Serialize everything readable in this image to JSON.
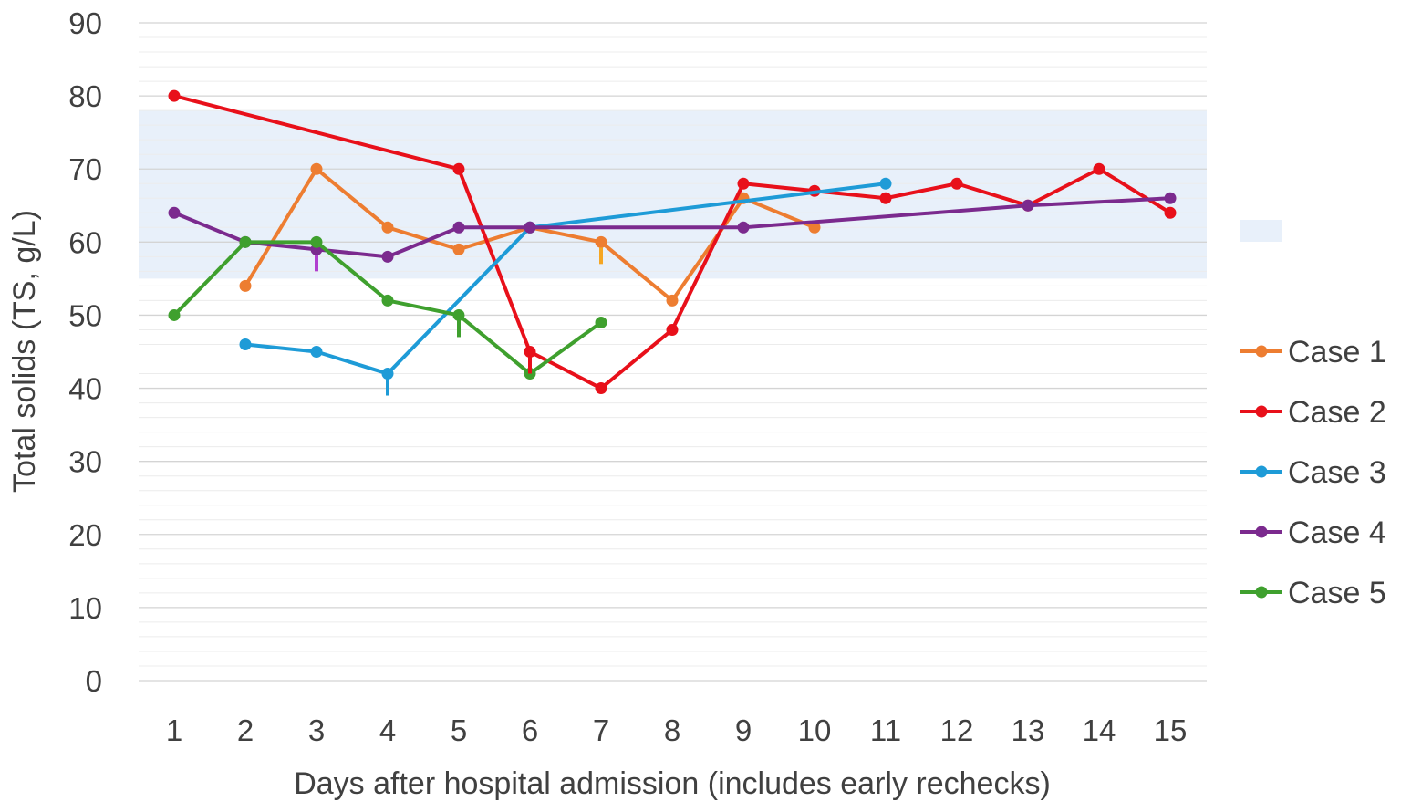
{
  "chart_data": {
    "type": "line",
    "title": "",
    "xlabel": "Days after hospital admission (includes early rechecks)",
    "ylabel": "Total solids  (TS, g/L)",
    "x_categories": [
      "1",
      "2",
      "3",
      "4",
      "5",
      "6",
      "7",
      "8",
      "9",
      "10",
      "11",
      "12",
      "13",
      "14",
      "15"
    ],
    "xlim": [
      1,
      15
    ],
    "ylim": [
      0,
      90
    ],
    "y_ticks": [
      "0",
      "10",
      "20",
      "30",
      "40",
      "50",
      "60",
      "70",
      "80",
      "90"
    ],
    "y_tick_values": [
      0,
      10,
      20,
      30,
      40,
      50,
      60,
      70,
      80,
      90
    ],
    "grid": true,
    "reference_band": {
      "from": 55,
      "to": 78,
      "color": "#e8f0fa"
    },
    "legend_position": "right",
    "series": [
      {
        "name": "Case 1",
        "color": "#ed7d31",
        "points": [
          [
            2,
            54
          ],
          [
            3,
            70
          ],
          [
            4,
            62
          ],
          [
            5,
            59
          ],
          [
            6,
            62
          ],
          [
            7,
            60
          ],
          [
            8,
            52
          ],
          [
            9,
            66
          ],
          [
            10,
            62
          ]
        ],
        "markers": [
          {
            "x": 7,
            "y": 60,
            "color": "#f5a623"
          }
        ]
      },
      {
        "name": "Case 2",
        "color": "#e8101a",
        "points": [
          [
            1,
            80
          ],
          [
            5,
            70
          ],
          [
            6,
            45
          ],
          [
            7,
            40
          ],
          [
            8,
            48
          ],
          [
            9,
            68
          ],
          [
            10,
            67
          ],
          [
            11,
            66
          ],
          [
            12,
            68
          ],
          [
            13,
            65
          ],
          [
            14,
            70
          ],
          [
            15,
            64
          ]
        ],
        "markers": [
          {
            "x": 6,
            "y": 45,
            "color": "#e8101a"
          }
        ]
      },
      {
        "name": "Case 3",
        "color": "#1e9bd7",
        "points": [
          [
            2,
            46
          ],
          [
            3,
            45
          ],
          [
            4,
            42
          ],
          [
            6,
            62
          ],
          [
            11,
            68
          ]
        ],
        "markers": [
          {
            "x": 4,
            "y": 42,
            "color": "#1e9bd7"
          }
        ]
      },
      {
        "name": "Case 4",
        "color": "#7b2a8e",
        "points": [
          [
            1,
            64
          ],
          [
            2,
            60
          ],
          [
            3,
            59
          ],
          [
            4,
            58
          ],
          [
            5,
            62
          ],
          [
            6,
            62
          ],
          [
            9,
            62
          ],
          [
            13,
            65
          ],
          [
            15,
            66
          ]
        ],
        "markers": [
          {
            "x": 3,
            "y": 59,
            "color": "#b03fd0"
          }
        ]
      },
      {
        "name": "Case 5",
        "color": "#3fa02e",
        "points": [
          [
            1,
            50
          ],
          [
            2,
            60
          ],
          [
            3,
            60
          ],
          [
            4,
            52
          ],
          [
            5,
            50
          ],
          [
            6,
            42
          ],
          [
            7,
            49
          ]
        ],
        "markers": [
          {
            "x": 5,
            "y": 50,
            "color": "#3fa02e"
          }
        ]
      }
    ]
  }
}
